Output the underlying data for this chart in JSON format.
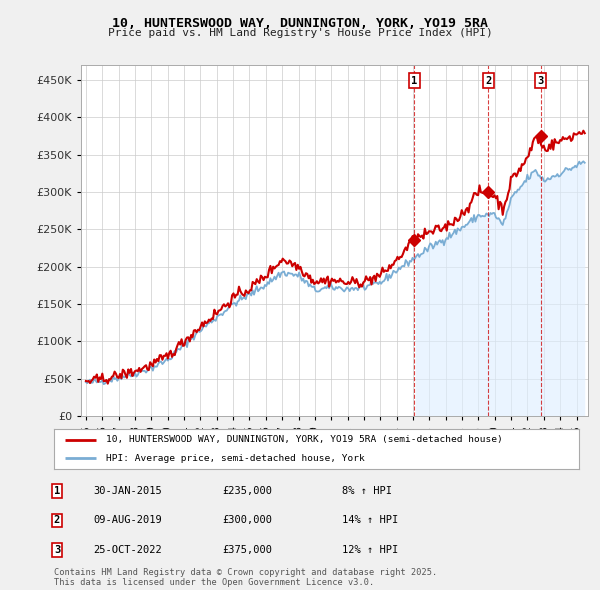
{
  "title": "10, HUNTERSWOOD WAY, DUNNINGTON, YORK, YO19 5RA",
  "subtitle": "Price paid vs. HM Land Registry's House Price Index (HPI)",
  "legend_line1": "10, HUNTERSWOOD WAY, DUNNINGTON, YORK, YO19 5RA (semi-detached house)",
  "legend_line2": "HPI: Average price, semi-detached house, York",
  "footer": "Contains HM Land Registry data © Crown copyright and database right 2025.\nThis data is licensed under the Open Government Licence v3.0.",
  "annotation_data": [
    {
      "num": "1",
      "date": "30-JAN-2015",
      "price": "£235,000",
      "pct": "8% ↑ HPI"
    },
    {
      "num": "2",
      "date": "09-AUG-2019",
      "price": "£300,000",
      "pct": "14% ↑ HPI"
    },
    {
      "num": "3",
      "date": "25-OCT-2022",
      "price": "£375,000",
      "pct": "12% ↑ HPI"
    }
  ],
  "price_line_color": "#cc0000",
  "hpi_line_color": "#7aadd4",
  "hpi_fill_color": "#ddeeff",
  "background_color": "#f0f0f0",
  "plot_bg_color": "#ffffff",
  "ylim": [
    0,
    470000
  ],
  "yticks": [
    0,
    50000,
    100000,
    150000,
    200000,
    250000,
    300000,
    350000,
    400000,
    450000
  ],
  "xlim_start": 1994.7,
  "xlim_end": 2025.7,
  "sale_times": [
    2015.08,
    2019.61,
    2022.81
  ],
  "sale_prices_on_line": [
    235000,
    300000,
    375000
  ],
  "shade_start": 2015.08
}
